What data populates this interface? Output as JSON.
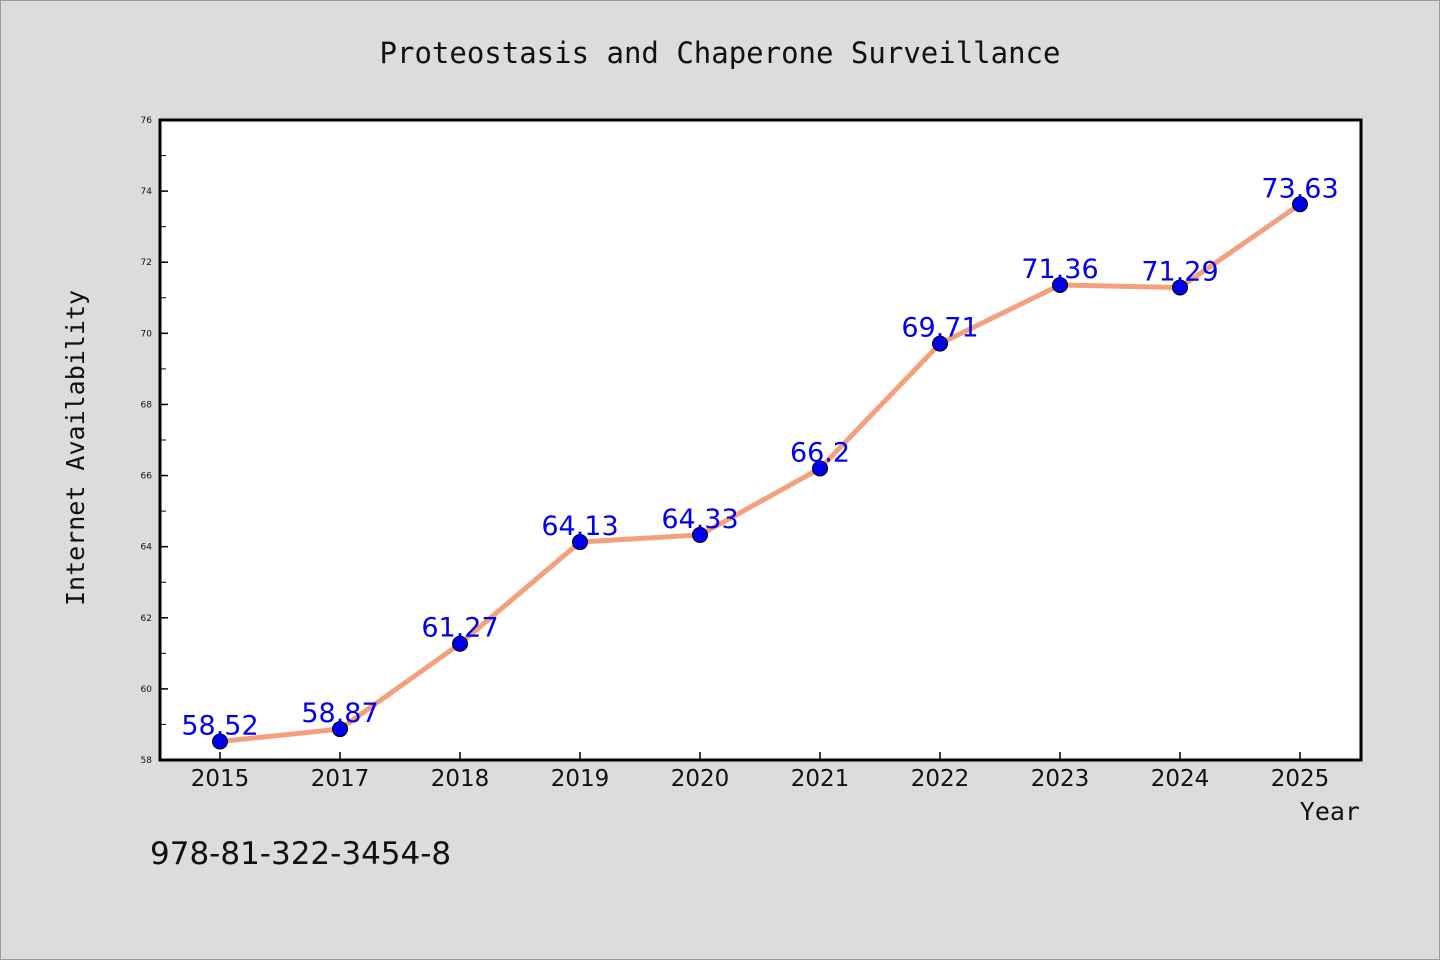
{
  "chart_data": {
    "type": "line",
    "title": "Proteostasis and Chaperone Surveillance",
    "xlabel": "Year",
    "ylabel": "Internet Availability",
    "categories": [
      "2015",
      "2017",
      "2018",
      "2019",
      "2020",
      "2021",
      "2022",
      "2023",
      "2024",
      "2025"
    ],
    "series": [
      {
        "values": [
          58.52,
          58.87,
          61.27,
          64.13,
          64.33,
          66.2,
          69.71,
          71.36,
          71.29,
          73.63
        ],
        "data_labels": [
          "58.52",
          "58.87",
          "61.27",
          "64.13",
          "64.33",
          "66.2",
          "69.71",
          "71.36",
          "71.29",
          "73.63"
        ],
        "line_color": "#f4a07c",
        "marker_color": "#0000ee"
      }
    ],
    "ylim": [
      58,
      76
    ],
    "y_ticks": [
      "58",
      "60",
      "62",
      "64",
      "66",
      "68",
      "70",
      "72",
      "74",
      "76"
    ],
    "grid": false,
    "legend": "none",
    "label_color": "#0000ee",
    "plot_background": "#ffffff",
    "figure_background": "#dcdcdc"
  },
  "footer": {
    "isbn": "978-81-322-3454-8"
  }
}
